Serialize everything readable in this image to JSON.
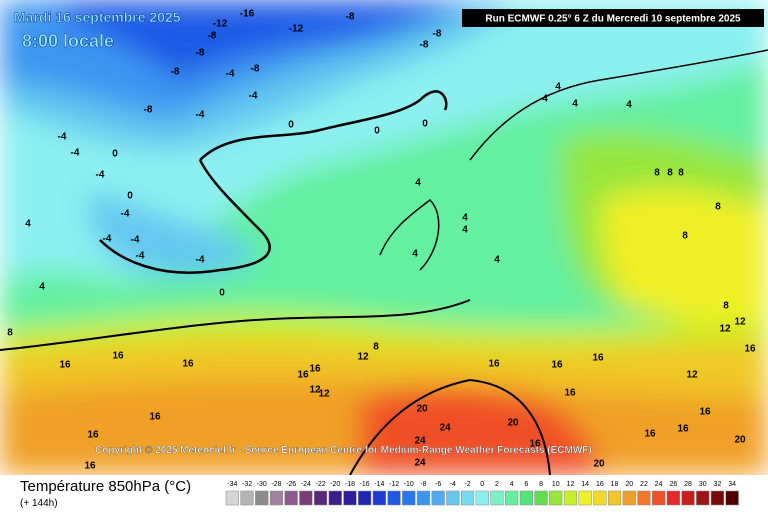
{
  "header": {
    "date": "Mardi 16 septembre 2025",
    "time": "8:00 locale",
    "run": "Run ECMWF 0.25° 6 Z du Mercredi 10 septembre 2025"
  },
  "copyright": "Copyright © 2025 Meteociel.fr - Source European Centre for Medium-Range Weather Forecasts (ECMWF)",
  "footer": {
    "title": "Température 850hPa (°C)",
    "lead": "(+ 144h)"
  },
  "scale": {
    "values": [
      -34,
      -32,
      -30,
      -28,
      -26,
      -24,
      -22,
      -20,
      -18,
      -16,
      -14,
      -12,
      -10,
      -8,
      -6,
      -4,
      -2,
      0,
      2,
      4,
      6,
      8,
      10,
      12,
      14,
      16,
      18,
      20,
      22,
      24,
      26,
      28,
      30,
      32,
      34
    ],
    "colors": [
      "#d6d6d6",
      "#b4b4b4",
      "#8c8c8c",
      "#a082a0",
      "#8c5a8c",
      "#783c78",
      "#5a2878",
      "#3c1e8c",
      "#2d1ea0",
      "#1e28b4",
      "#1e3cd2",
      "#1e5ae6",
      "#2878f0",
      "#3c96f0",
      "#50aaf0",
      "#64c8f0",
      "#78dcf0",
      "#8cf0f0",
      "#78f0c8",
      "#64f0a0",
      "#50e678",
      "#64dc50",
      "#96e63c",
      "#c8f028",
      "#f0f028",
      "#f0dc28",
      "#f0c828",
      "#f0a028",
      "#f07828",
      "#f05028",
      "#e62828",
      "#c81e1e",
      "#a01414",
      "#780a0a",
      "#500000"
    ]
  },
  "map_labels": [
    -8,
    -12,
    -16,
    -12,
    -8,
    -8,
    -8,
    -8,
    -8,
    -4,
    -8,
    -4,
    -8,
    -4,
    0,
    0,
    0,
    -4,
    -4,
    0,
    -4,
    0,
    -4,
    -4,
    -4,
    -4,
    -4,
    0,
    4,
    4,
    4,
    4,
    4,
    4,
    4,
    8,
    16,
    16,
    16,
    12,
    8,
    16,
    16,
    12,
    12,
    16,
    16,
    16,
    16,
    16,
    16,
    12,
    16,
    12,
    12,
    8,
    8,
    8,
    8,
    8,
    8,
    4,
    4,
    4,
    4,
    20,
    24,
    20,
    24,
    24,
    20,
    20,
    16,
    16,
    16,
    16,
    16
  ]
}
